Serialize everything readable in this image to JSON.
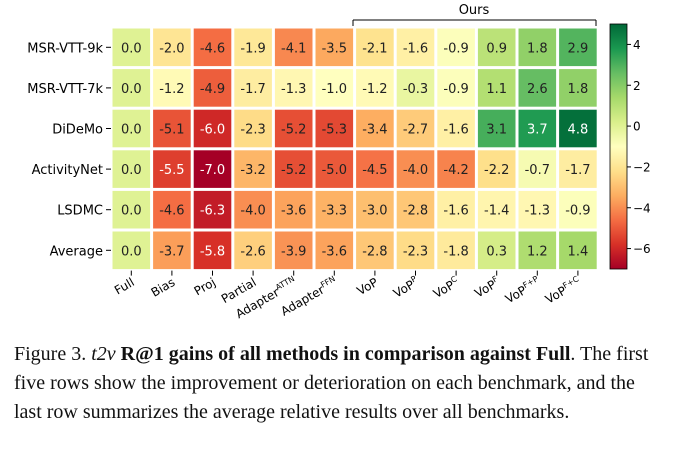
{
  "chart_data": {
    "type": "heatmap",
    "group_label": "Ours",
    "rows": [
      "MSR-VTT-9k",
      "MSR-VTT-7k",
      "DiDeMo",
      "ActivityNet",
      "LSDMC",
      "Average"
    ],
    "columns": [
      {
        "base": "Full",
        "sup": ""
      },
      {
        "base": "Bias",
        "sup": ""
      },
      {
        "base": "Proj",
        "sup": ""
      },
      {
        "base": "Partial",
        "sup": ""
      },
      {
        "base": "Adapter",
        "sup": "ATTN"
      },
      {
        "base": "Adapter",
        "sup": "FFN"
      },
      {
        "base": "VoP",
        "sup": ""
      },
      {
        "base": "VoP",
        "sup": "P"
      },
      {
        "base": "VoP",
        "sup": "C"
      },
      {
        "base": "VoP",
        "sup": "F"
      },
      {
        "base": "VoP",
        "sup": "F+P"
      },
      {
        "base": "VoP",
        "sup": "F+C"
      }
    ],
    "values": [
      [
        0.0,
        -2.0,
        -4.6,
        -1.9,
        -4.1,
        -3.5,
        -2.1,
        -1.6,
        -0.9,
        0.9,
        1.8,
        2.9
      ],
      [
        0.0,
        -1.2,
        -4.9,
        -1.7,
        -1.3,
        -1.0,
        -1.2,
        -0.3,
        -0.9,
        1.1,
        2.6,
        1.8
      ],
      [
        0.0,
        -5.1,
        -6.0,
        -2.3,
        -5.2,
        -5.3,
        -3.4,
        -2.7,
        -1.6,
        3.1,
        3.7,
        4.8
      ],
      [
        0.0,
        -5.5,
        -7.0,
        -3.2,
        -5.2,
        -5.0,
        -4.5,
        -4.0,
        -4.2,
        -2.2,
        -0.7,
        -1.7
      ],
      [
        0.0,
        -4.6,
        -6.3,
        -4.0,
        -3.6,
        -3.3,
        -3.0,
        -2.8,
        -1.6,
        -1.4,
        -1.3,
        -0.9
      ],
      [
        0.0,
        -3.7,
        -5.8,
        -2.6,
        -3.9,
        -3.6,
        -2.8,
        -2.3,
        -1.8,
        0.3,
        1.2,
        1.4
      ]
    ],
    "vmin": -7.0,
    "vmax": 5.0,
    "colormap": "RdYlGn",
    "colorbar_ticks": [
      "4",
      "2",
      "0",
      "−2",
      "−4",
      "−6"
    ],
    "colorbar_tick_values": [
      4,
      2,
      0,
      -2,
      -4,
      -6
    ]
  },
  "caption": {
    "figure_label": "Figure 3.",
    "t2v": "t2v",
    "bold_text": "R@1 gains of all methods in comparison against Full",
    "rest": ". The first five rows show the improvement or deterioration on each benchmark, and the last row summarizes the average relative results over all benchmarks."
  }
}
